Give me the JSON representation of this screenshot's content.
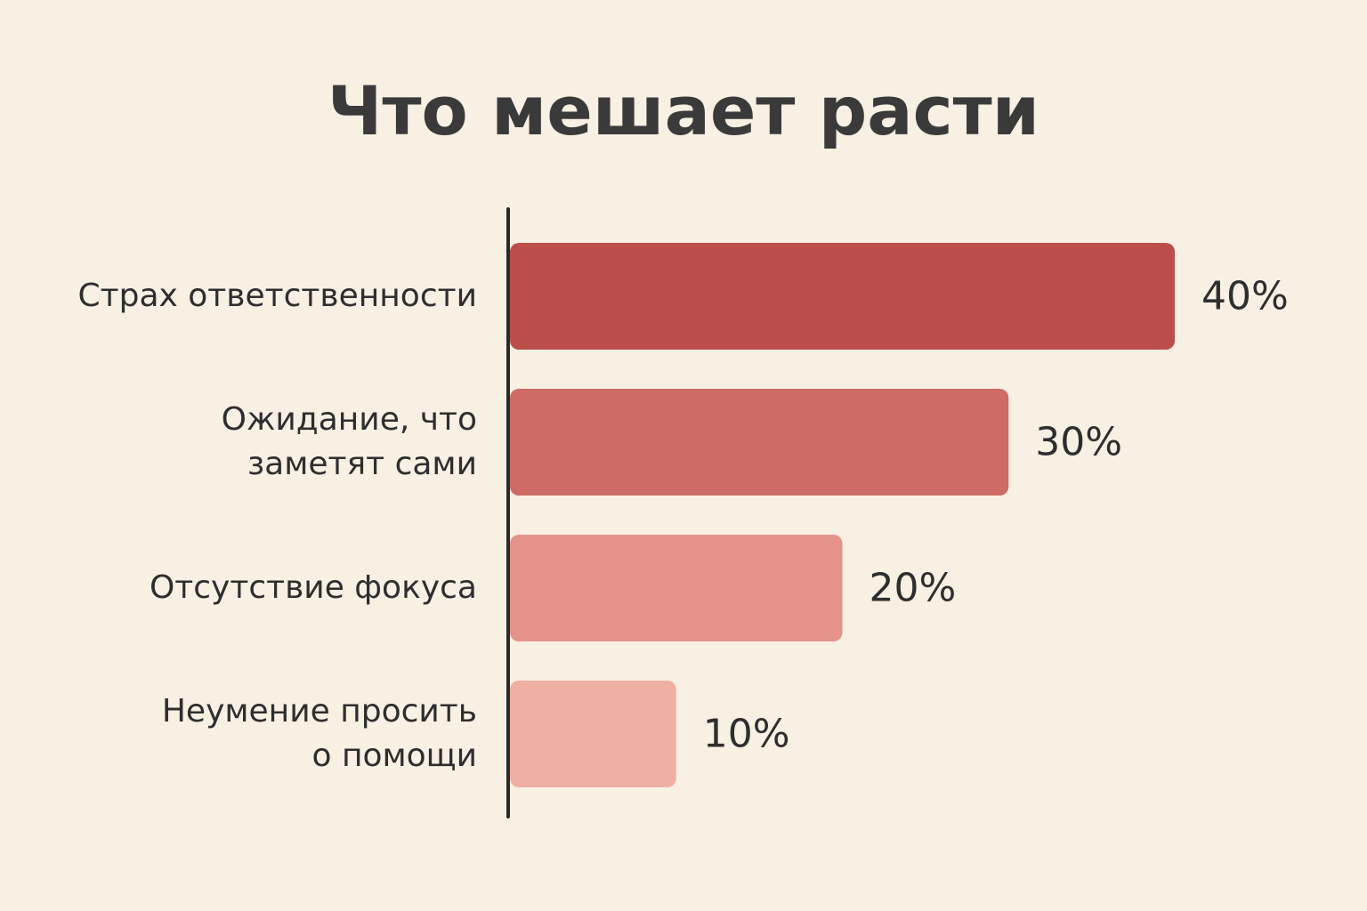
{
  "chart_data": {
    "type": "bar",
    "orientation": "horizontal",
    "title": "Что мешает расти",
    "categories": [
      "Страх ответственности",
      "Ожидание, что\nзаметят сами",
      "Отсутствие фокуса",
      "Неумение просить\nо помощи"
    ],
    "values": [
      40,
      30,
      20,
      10
    ],
    "value_labels": [
      "40%",
      "30%",
      "20%",
      "10%"
    ],
    "colors": [
      "#bb4e4a",
      "#cf6b66",
      "#e4928a",
      "#efb0a3"
    ]
  }
}
